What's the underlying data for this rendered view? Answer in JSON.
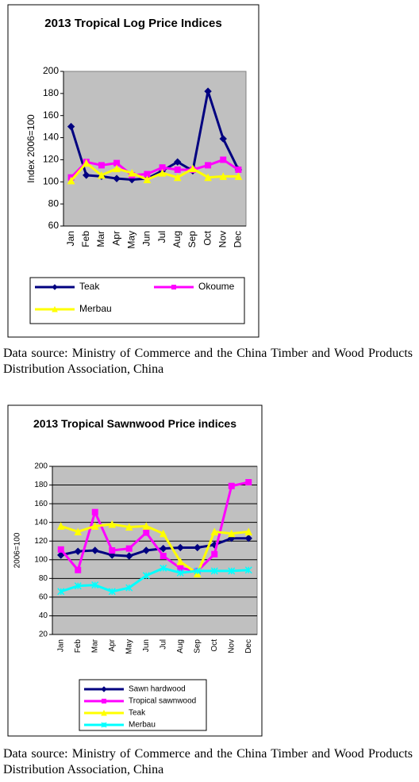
{
  "chart_data": [
    {
      "type": "line",
      "title": "2013 Tropical Log Price Indices",
      "ylabel": "Index 2006=100",
      "categories": [
        "Jan",
        "Feb",
        "Mar",
        "Apr",
        "May",
        "Jun",
        "Jul",
        "Aug",
        "Sep",
        "Oct",
        "Nov",
        "Dec"
      ],
      "ylim": [
        60,
        200
      ],
      "yticks": [
        60,
        80,
        100,
        120,
        140,
        160,
        180,
        200
      ],
      "grid": false,
      "legend": "bottom",
      "series": [
        {
          "name": "Teak",
          "color": "#000080",
          "marker": "diamond",
          "values": [
            150,
            106,
            105,
            103,
            102,
            103,
            110,
            118,
            110,
            182,
            139,
            111
          ]
        },
        {
          "name": "Okoume",
          "color": "#ff00ff",
          "marker": "square",
          "values": [
            104,
            118,
            115,
            117,
            106,
            107,
            113,
            111,
            111,
            115,
            120,
            111
          ]
        },
        {
          "name": "Merbau",
          "color": "#ffff00",
          "marker": "triangle",
          "values": [
            101,
            117,
            106,
            112,
            108,
            102,
            108,
            104,
            112,
            104,
            105,
            105
          ]
        }
      ]
    },
    {
      "type": "line",
      "title": "2013 Tropical Sawnwood Price indices",
      "ylabel": "2006=100",
      "categories": [
        "Jan",
        "Feb",
        "Mar",
        "Apr",
        "May",
        "Jun",
        "Jul",
        "Aug",
        "Sep",
        "Oct",
        "Nov",
        "Dec"
      ],
      "ylim": [
        20,
        200
      ],
      "yticks": [
        20,
        40,
        60,
        80,
        100,
        120,
        140,
        160,
        180,
        200
      ],
      "grid": true,
      "legend": "bottom",
      "series": [
        {
          "name": "Sawn hardwood",
          "color": "#000080",
          "marker": "diamond",
          "values": [
            105,
            109,
            110,
            105,
            104,
            110,
            112,
            113,
            113,
            116,
            123,
            123
          ]
        },
        {
          "name": "Tropical sawnwood",
          "color": "#ff00ff",
          "marker": "square",
          "values": [
            111,
            89,
            151,
            110,
            112,
            129,
            104,
            91,
            88,
            106,
            179,
            183
          ]
        },
        {
          "name": "Teak",
          "color": "#ffff00",
          "marker": "triangle",
          "values": [
            136,
            130,
            136,
            138,
            135,
            136,
            128,
            98,
            85,
            130,
            128,
            130
          ]
        },
        {
          "name": "Merbau",
          "color": "#00ffff",
          "marker": "x",
          "values": [
            66,
            72,
            73,
            66,
            70,
            83,
            91,
            86,
            88,
            88,
            88,
            89
          ]
        }
      ]
    }
  ],
  "captions": [
    "Data source: Ministry of Commerce and the China Timber and Wood Products Distribution Association, China",
    "Data source: Ministry of Commerce and the China Timber and Wood Products Distribution Association, China"
  ]
}
